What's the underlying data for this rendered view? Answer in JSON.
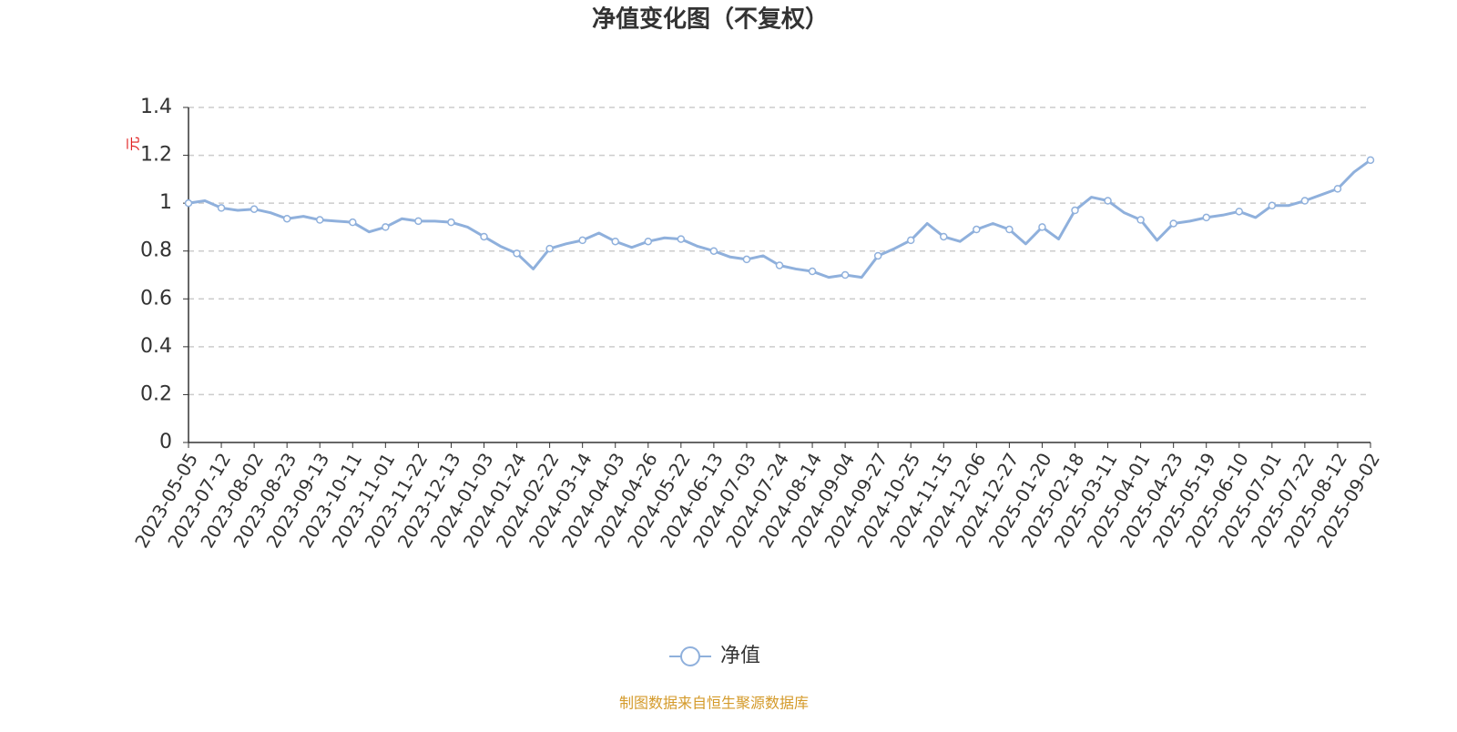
{
  "chart_data": {
    "type": "line",
    "title": "净值变化图（不复权）",
    "y_axis_label": "元",
    "footnote": "制图数据来自恒生聚源数据库",
    "categories": [
      "2023-05-05",
      null,
      "2023-07-12",
      null,
      "2023-08-02",
      null,
      "2023-08-23",
      null,
      "2023-09-13",
      null,
      "2023-10-11",
      null,
      "2023-11-01",
      null,
      "2023-11-22",
      null,
      "2023-12-13",
      null,
      "2024-01-03",
      null,
      "2024-01-24",
      null,
      "2024-02-22",
      null,
      "2024-03-14",
      null,
      "2024-04-03",
      null,
      "2024-04-26",
      null,
      "2024-05-22",
      null,
      "2024-06-13",
      null,
      "2024-07-03",
      null,
      "2024-07-24",
      null,
      "2024-08-14",
      null,
      "2024-09-04",
      null,
      "2024-09-27",
      null,
      "2024-10-25",
      null,
      "2024-11-15",
      null,
      "2024-12-06",
      null,
      "2024-12-27",
      null,
      "2025-01-20",
      null,
      "2025-02-18",
      null,
      "2025-03-11",
      null,
      "2025-04-01",
      null,
      "2025-04-23",
      null,
      "2025-05-19",
      null,
      "2025-06-10",
      null,
      "2025-07-01",
      null,
      "2025-07-22",
      null,
      "2025-08-12",
      null,
      "2025-09-02"
    ],
    "series": [
      {
        "name": "净值",
        "color": "#8fb0dc",
        "values": [
          1.0,
          1.01,
          0.98,
          0.97,
          0.975,
          0.96,
          0.935,
          0.945,
          0.93,
          0.925,
          0.92,
          0.88,
          0.9,
          0.935,
          0.925,
          0.925,
          0.92,
          0.9,
          0.86,
          0.82,
          0.79,
          0.725,
          0.81,
          0.83,
          0.845,
          0.875,
          0.84,
          0.815,
          0.84,
          0.855,
          0.85,
          0.82,
          0.8,
          0.775,
          0.765,
          0.78,
          0.74,
          0.725,
          0.715,
          0.69,
          0.7,
          0.69,
          0.78,
          0.81,
          0.845,
          0.915,
          0.86,
          0.84,
          0.89,
          0.915,
          0.89,
          0.83,
          0.9,
          0.85,
          0.97,
          1.025,
          1.01,
          0.96,
          0.93,
          0.845,
          0.915,
          0.925,
          0.94,
          0.95,
          0.965,
          0.94,
          0.99,
          0.99,
          1.01,
          1.035,
          1.06,
          1.13,
          1.18
        ]
      }
    ],
    "ylim": [
      0,
      1.4
    ],
    "yticks": [
      0,
      0.2,
      0.4,
      0.6,
      0.8,
      1,
      1.2,
      1.4
    ],
    "grid": true,
    "legend": "bottom"
  }
}
